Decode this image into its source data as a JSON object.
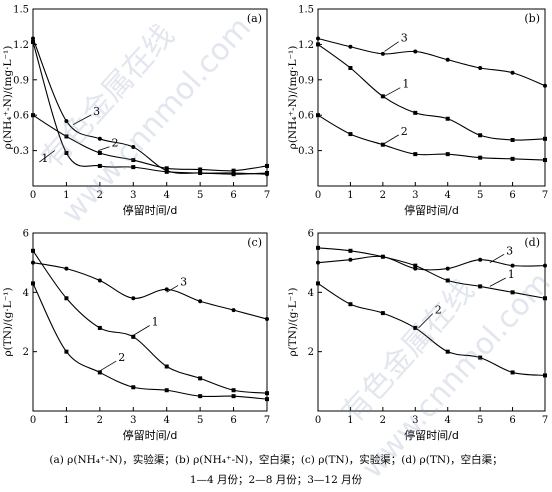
{
  "chart_data": [
    {
      "type": "line",
      "panel": "(a)",
      "ylabel": "ρ(NH₄⁺-N)/(mg·L⁻¹)",
      "xlabel": "停留时间/d",
      "xlim": [
        0,
        7
      ],
      "ylim": [
        0,
        1.5
      ],
      "xticks": [
        "0",
        "1",
        "2",
        "3",
        "4",
        "5",
        "6",
        "7"
      ],
      "yticks": [
        "0.3",
        "0.6",
        "0.9",
        "1.2",
        "1.5"
      ],
      "series": [
        {
          "name": "1",
          "x": [
            0,
            1,
            2,
            3,
            4,
            5,
            6,
            7
          ],
          "y": [
            1.22,
            0.28,
            0.17,
            0.16,
            0.12,
            0.11,
            0.1,
            0.11
          ]
        },
        {
          "name": "2",
          "x": [
            0,
            1,
            2,
            3,
            4,
            5,
            6,
            7
          ],
          "y": [
            0.6,
            0.42,
            0.28,
            0.22,
            0.15,
            0.14,
            0.13,
            0.17
          ]
        },
        {
          "name": "3",
          "x": [
            0,
            1,
            2,
            3,
            4,
            5,
            6,
            7
          ],
          "y": [
            1.25,
            0.55,
            0.4,
            0.33,
            0.13,
            0.11,
            0.11,
            0.1
          ]
        }
      ],
      "labels": [
        {
          "text": "3",
          "x": 1.8,
          "y": 0.62,
          "ax": 1.2,
          "ay": 0.52
        },
        {
          "text": "2",
          "x": 2.35,
          "y": 0.35,
          "ax": 1.95,
          "ay": 0.3
        },
        {
          "text": "1",
          "x": 0.25,
          "y": 0.22,
          "ax": 0.65,
          "ay": 0.3
        }
      ]
    },
    {
      "type": "line",
      "panel": "(b)",
      "ylabel": "ρ(NH₄⁺-N)/(mg·L⁻¹)",
      "xlabel": "停留时间/d",
      "xlim": [
        0,
        7
      ],
      "ylim": [
        0,
        1.5
      ],
      "xticks": [
        "0",
        "1",
        "2",
        "3",
        "4",
        "5",
        "6",
        "7"
      ],
      "yticks": [
        "0.3",
        "0.6",
        "0.9",
        "1.2",
        "1.5"
      ],
      "series": [
        {
          "name": "1",
          "x": [
            0,
            1,
            2,
            3,
            4,
            5,
            6,
            7
          ],
          "y": [
            1.2,
            1.0,
            0.76,
            0.62,
            0.57,
            0.43,
            0.39,
            0.4
          ]
        },
        {
          "name": "2",
          "x": [
            0,
            1,
            2,
            3,
            4,
            5,
            6,
            7
          ],
          "y": [
            0.6,
            0.44,
            0.35,
            0.27,
            0.27,
            0.24,
            0.23,
            0.22
          ]
        },
        {
          "name": "3",
          "x": [
            0,
            1,
            2,
            3,
            4,
            5,
            6,
            7
          ],
          "y": [
            1.25,
            1.18,
            1.12,
            1.14,
            1.07,
            1.0,
            0.96,
            0.85
          ]
        }
      ],
      "labels": [
        {
          "text": "3",
          "x": 2.55,
          "y": 1.24,
          "ax": 2.05,
          "ay": 1.14
        },
        {
          "text": "1",
          "x": 2.6,
          "y": 0.85,
          "ax": 2.05,
          "ay": 0.76
        },
        {
          "text": "2",
          "x": 2.55,
          "y": 0.45,
          "ax": 2.05,
          "ay": 0.36
        }
      ]
    },
    {
      "type": "line",
      "panel": "(c)",
      "ylabel": "ρ(TN)/(g·L⁻¹)",
      "xlabel": "停留时间/d",
      "xlim": [
        0,
        7
      ],
      "ylim": [
        0,
        6
      ],
      "xticks": [
        "0",
        "1",
        "2",
        "3",
        "4",
        "5",
        "6",
        "7"
      ],
      "yticks": [
        "2",
        "4",
        "6"
      ],
      "series": [
        {
          "name": "1",
          "x": [
            0,
            1,
            2,
            3,
            4,
            5,
            6,
            7
          ],
          "y": [
            5.4,
            3.8,
            2.8,
            2.5,
            1.5,
            1.1,
            0.7,
            0.6
          ]
        },
        {
          "name": "2",
          "x": [
            0,
            1,
            2,
            3,
            4,
            5,
            6,
            7
          ],
          "y": [
            4.3,
            2.0,
            1.3,
            0.8,
            0.7,
            0.5,
            0.5,
            0.4
          ]
        },
        {
          "name": "3",
          "x": [
            0,
            1,
            2,
            3,
            4,
            5,
            6,
            7
          ],
          "y": [
            5.0,
            4.8,
            4.4,
            3.8,
            4.1,
            3.7,
            3.4,
            3.1
          ]
        }
      ],
      "labels": [
        {
          "text": "3",
          "x": 4.4,
          "y": 4.3,
          "ax": 4.0,
          "ay": 4.0
        },
        {
          "text": "1",
          "x": 3.55,
          "y": 2.95,
          "ax": 3.0,
          "ay": 2.55
        },
        {
          "text": "2",
          "x": 2.55,
          "y": 1.75,
          "ax": 2.0,
          "ay": 1.35
        }
      ]
    },
    {
      "type": "line",
      "panel": "(d)",
      "ylabel": "ρ(TN)/(g·L⁻¹)",
      "xlabel": "停留时间/d",
      "xlim": [
        0,
        7
      ],
      "ylim": [
        0,
        6
      ],
      "xticks": [
        "0",
        "1",
        "2",
        "3",
        "4",
        "5",
        "6",
        "7"
      ],
      "yticks": [
        "2",
        "4",
        "6"
      ],
      "series": [
        {
          "name": "1",
          "x": [
            0,
            1,
            2,
            3,
            4,
            5,
            6,
            7
          ],
          "y": [
            5.5,
            5.4,
            5.2,
            4.9,
            4.4,
            4.2,
            4.0,
            3.8
          ]
        },
        {
          "name": "2",
          "x": [
            0,
            1,
            2,
            3,
            4,
            5,
            6,
            7
          ],
          "y": [
            4.3,
            3.6,
            3.3,
            2.8,
            2.0,
            1.8,
            1.3,
            1.2
          ]
        },
        {
          "name": "3",
          "x": [
            0,
            1,
            2,
            3,
            4,
            5,
            6,
            7
          ],
          "y": [
            5.0,
            5.1,
            5.2,
            4.8,
            4.8,
            5.1,
            4.9,
            4.9
          ]
        }
      ],
      "labels": [
        {
          "text": "3",
          "x": 5.8,
          "y": 5.35,
          "ax": 5.3,
          "ay": 5.0
        },
        {
          "text": "1",
          "x": 5.85,
          "y": 4.55,
          "ax": 5.3,
          "ay": 4.2
        },
        {
          "text": "2",
          "x": 3.6,
          "y": 3.35,
          "ax": 3.1,
          "ay": 2.8
        }
      ]
    }
  ],
  "caption": {
    "line1": "(a) ρ(NH₄⁺-N)，实验渠；(b) ρ(NH₄⁺-N)，空白渠；(c) ρ(TN)，实验渠；(d) ρ(TN)，空白渠；",
    "line2": "1—4 月份；2—8 月份；3—12 月份"
  },
  "watermark": {
    "text": "有色金属在线",
    "url": "www.cnnmol.com"
  }
}
